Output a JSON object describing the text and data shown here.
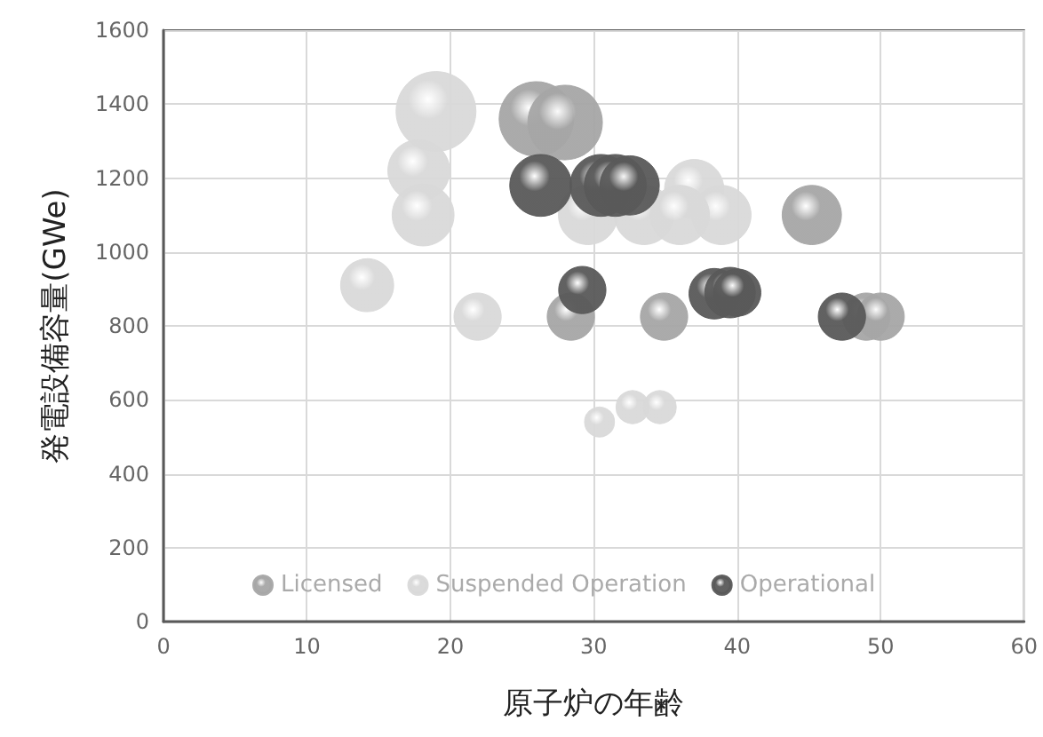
{
  "chart_data": {
    "type": "bubble",
    "xlabel": "原子炉の年齢",
    "ylabel": "発電設備容量(GWe)",
    "xlim": [
      0,
      60
    ],
    "xticks": [
      0,
      10,
      20,
      30,
      40,
      50,
      60
    ],
    "ylim": [
      0,
      1600
    ],
    "yticks": [
      0,
      200,
      400,
      600,
      800,
      1000,
      1200,
      1400,
      1600
    ],
    "grid": true,
    "legend": "bottom",
    "series": [
      {
        "name": "Licensed",
        "color": "#a6a6a6",
        "x": [
          26,
          28,
          28.4,
          34.9,
          45.2,
          49,
          50
        ],
        "values": [
          1360,
          1350,
          825,
          825,
          1100,
          825,
          825
        ],
        "sizes": [
          0.87,
          0.87,
          0.35,
          0.35,
          0.55,
          0.35,
          0.35
        ]
      },
      {
        "name": "Suspended Operation",
        "color": "#d9d9d9",
        "x": [
          14.2,
          21.9,
          19,
          17.8,
          18.1,
          37,
          38.9,
          29.6,
          33.5,
          36,
          30.4,
          32.7,
          34.6
        ],
        "values": [
          910,
          825,
          1380,
          1220,
          1100,
          1170,
          1100,
          1100,
          1100,
          1100,
          540,
          580,
          580
        ],
        "sizes": [
          0.44,
          0.35,
          1,
          0.6,
          0.6,
          0.55,
          0.55,
          0.55,
          0.55,
          0.55,
          0.14,
          0.17,
          0.17
        ]
      },
      {
        "name": "Operational",
        "color": "#595959",
        "x": [
          26.3,
          30.5,
          31.5,
          32.5,
          29.2,
          38.4,
          39.5,
          40,
          47.3
        ],
        "values": [
          1180,
          1180,
          1180,
          1180,
          897,
          887,
          890,
          890,
          825
        ],
        "sizes": [
          0.6,
          0.6,
          0.6,
          0.55,
          0.35,
          0.4,
          0.4,
          0.35,
          0.35
        ]
      }
    ]
  }
}
